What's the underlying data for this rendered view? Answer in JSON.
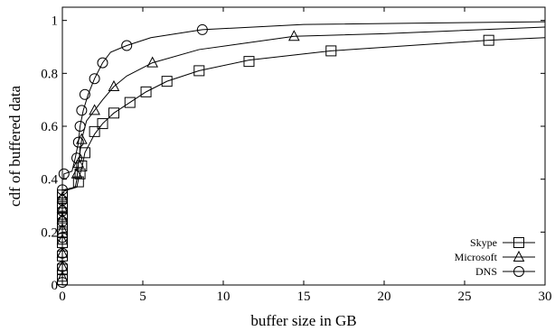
{
  "chart_data": {
    "type": "line",
    "xlabel": "buffer size in GB",
    "ylabel": "cdf of buffered data",
    "xlim": [
      0,
      30
    ],
    "ylim": [
      0,
      1.05
    ],
    "xticks": [
      "0",
      "5",
      "10",
      "15",
      "20",
      "25",
      "30"
    ],
    "yticks": [
      "0",
      "0.2",
      "0.4",
      "0.6",
      "0.8",
      "1"
    ],
    "grid": false,
    "legend_position": "bottom-right",
    "series": [
      {
        "name": "Skype",
        "marker": "square",
        "x": [
          0,
          0,
          0.1,
          0.1,
          0.9,
          1.0,
          1.2,
          1.4,
          2.0,
          2.5,
          3.2,
          4.2,
          5.2,
          6.5,
          8.5,
          11.6,
          16.7,
          26.5,
          30
        ],
        "y": [
          0,
          0.35,
          0.35,
          0.355,
          0.37,
          0.4,
          0.44,
          0.5,
          0.57,
          0.61,
          0.65,
          0.69,
          0.73,
          0.77,
          0.81,
          0.85,
          0.885,
          0.925,
          0.935
        ],
        "markers_x": [
          0,
          0,
          0,
          0,
          0,
          0,
          0,
          0,
          0,
          0,
          1.0,
          1.1,
          1.2,
          1.4,
          2.0,
          2.5,
          3.2,
          4.2,
          5.2,
          6.5,
          8.5,
          11.6,
          16.7,
          26.5
        ],
        "markers_y": [
          0.02,
          0.06,
          0.11,
          0.16,
          0.2,
          0.23,
          0.26,
          0.29,
          0.31,
          0.34,
          0.39,
          0.42,
          0.45,
          0.5,
          0.58,
          0.61,
          0.65,
          0.69,
          0.73,
          0.77,
          0.81,
          0.845,
          0.885,
          0.925
        ]
      },
      {
        "name": "Microsoft",
        "marker": "triangle",
        "x": [
          0,
          0,
          0.1,
          0.1,
          0.8,
          0.9,
          1.0,
          1.2,
          1.5,
          2.0,
          2.5,
          3.2,
          4.0,
          5.6,
          8.5,
          14.4,
          20,
          30
        ],
        "y": [
          0,
          0.36,
          0.36,
          0.36,
          0.37,
          0.4,
          0.46,
          0.55,
          0.62,
          0.66,
          0.7,
          0.75,
          0.79,
          0.84,
          0.89,
          0.94,
          0.95,
          0.975
        ],
        "markers_x": [
          0,
          0,
          0,
          0,
          0,
          0,
          0,
          0,
          0.9,
          1.0,
          1.2,
          2.0,
          3.2,
          5.6,
          14.4
        ],
        "markers_y": [
          0.03,
          0.07,
          0.12,
          0.17,
          0.21,
          0.25,
          0.29,
          0.33,
          0.42,
          0.46,
          0.55,
          0.66,
          0.75,
          0.84,
          0.94
        ]
      },
      {
        "name": "DNS",
        "marker": "circle",
        "x": [
          0,
          0,
          0.1,
          0.1,
          0.6,
          0.8,
          1.0,
          1.1,
          1.3,
          1.6,
          2.0,
          2.5,
          3.0,
          4.0,
          5.5,
          8.7,
          15,
          30
        ],
        "y": [
          0,
          0.4,
          0.4,
          0.42,
          0.43,
          0.48,
          0.54,
          0.6,
          0.66,
          0.72,
          0.78,
          0.84,
          0.88,
          0.905,
          0.935,
          0.965,
          0.985,
          0.995
        ],
        "markers_x": [
          0,
          0,
          0,
          0,
          0,
          0,
          0,
          0,
          0.1,
          0.9,
          1.0,
          1.1,
          1.2,
          1.4,
          2.0,
          2.5,
          4.0,
          8.7
        ],
        "markers_y": [
          0.01,
          0.07,
          0.12,
          0.18,
          0.24,
          0.28,
          0.32,
          0.36,
          0.42,
          0.48,
          0.54,
          0.6,
          0.66,
          0.72,
          0.78,
          0.84,
          0.905,
          0.965
        ]
      }
    ]
  }
}
